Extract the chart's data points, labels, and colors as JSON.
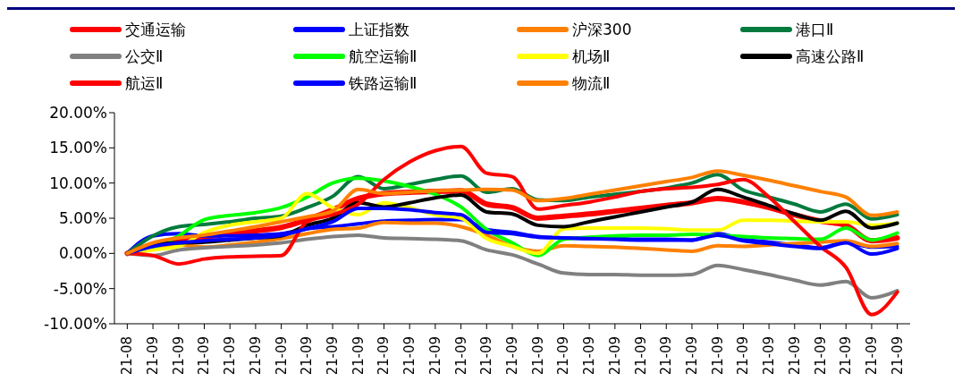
{
  "chart_data": {
    "type": "line",
    "categories": [
      "21-08",
      "21-09",
      "21-09",
      "21-09",
      "21-09",
      "21-09",
      "21-09",
      "21-09",
      "21-09",
      "21-09",
      "21-09",
      "21-09",
      "21-09",
      "21-09",
      "21-09",
      "21-09",
      "21-09",
      "21-09",
      "21-09",
      "21-09",
      "21-09",
      "21-09",
      "21-09",
      "21-09",
      "21-09",
      "21-09",
      "21-09",
      "21-09",
      "21-09",
      "21-09",
      "21-09"
    ],
    "series": [
      {
        "name": "交通运输",
        "color": "#ff0000",
        "values": [
          0,
          1.2,
          1.8,
          2.3,
          2.8,
          3.2,
          3.7,
          4.8,
          6.2,
          7.8,
          8.5,
          8.7,
          8.8,
          8.9,
          7.0,
          6.5,
          5.0,
          5.3,
          5.6,
          6.0,
          6.4,
          6.8,
          7.2,
          7.8,
          7.3,
          6.5,
          5.5,
          4.6,
          4.0,
          1.8,
          2.2
        ]
      },
      {
        "name": "上证指数",
        "color": "#0000ff",
        "values": [
          0,
          2.5,
          2.8,
          2.5,
          2.5,
          2.6,
          2.8,
          3.5,
          3.8,
          4.2,
          4.6,
          4.7,
          4.8,
          4.8,
          3.4,
          3.0,
          2.4,
          2.2,
          2.1,
          2.1,
          2.0,
          2.0,
          1.9,
          2.8,
          2.0,
          1.6,
          1.2,
          0.8,
          1.6,
          0.9,
          1.0
        ]
      },
      {
        "name": "沪深300",
        "color": "#ff8000",
        "values": [
          0,
          1.0,
          1.2,
          0.9,
          1.2,
          1.6,
          2.1,
          2.8,
          3.4,
          3.6,
          4.4,
          4.3,
          4.3,
          3.8,
          2.6,
          1.0,
          0.3,
          1.1,
          1.0,
          0.9,
          0.7,
          0.5,
          0.3,
          1.1,
          1.0,
          1.2,
          1.4,
          1.6,
          1.8,
          1.0,
          1.4
        ]
      },
      {
        "name": "港口Ⅱ",
        "color": "#007a3d",
        "values": [
          0,
          2.5,
          3.8,
          4.1,
          4.5,
          5.0,
          5.3,
          6.5,
          8.1,
          10.9,
          9.2,
          9.8,
          10.5,
          11.0,
          8.7,
          9.2,
          7.6,
          7.5,
          8.0,
          8.4,
          8.8,
          9.3,
          10.0,
          11.2,
          9.0,
          8.0,
          7.0,
          5.9,
          7.0,
          4.9,
          5.5
        ]
      },
      {
        "name": "公交Ⅱ",
        "color": "#808080",
        "values": [
          0,
          -0.3,
          0.5,
          0.8,
          1.0,
          1.2,
          1.5,
          2.0,
          2.4,
          2.6,
          2.2,
          2.1,
          2.0,
          1.8,
          0.5,
          -0.2,
          -1.5,
          -2.8,
          -3.0,
          -3.0,
          -3.1,
          -3.1,
          -3.0,
          -1.7,
          -2.3,
          -3.0,
          -3.8,
          -4.5,
          -4.0,
          -6.3,
          -5.3
        ]
      },
      {
        "name": "航空运输Ⅱ",
        "color": "#00ff00",
        "values": [
          0,
          0.8,
          2.5,
          4.8,
          5.4,
          5.8,
          6.5,
          8.0,
          10.0,
          10.7,
          10.3,
          9.5,
          8.4,
          6.6,
          3.4,
          1.5,
          -0.3,
          2.0,
          2.3,
          2.5,
          2.6,
          2.6,
          2.7,
          2.6,
          2.4,
          2.2,
          2.1,
          2.0,
          3.6,
          1.9,
          2.9
        ]
      },
      {
        "name": "机场Ⅱ",
        "color": "#ffff00",
        "values": [
          0,
          0.5,
          1.0,
          3.0,
          4.0,
          4.5,
          5.0,
          8.5,
          6.5,
          5.5,
          7.2,
          6.5,
          5.5,
          5.0,
          2.1,
          1.0,
          0,
          3.5,
          3.6,
          3.6,
          3.6,
          3.5,
          3.3,
          3.3,
          4.7,
          4.7,
          4.6,
          4.5,
          4.5,
          4.0,
          4.3
        ]
      },
      {
        "name": "高速公路Ⅱ",
        "color": "#000000",
        "values": [
          0,
          1.3,
          1.5,
          1.6,
          1.9,
          2.2,
          2.5,
          4.0,
          5.0,
          7.2,
          6.6,
          7.2,
          7.9,
          8.3,
          5.9,
          5.6,
          4.0,
          3.8,
          4.5,
          5.2,
          5.9,
          6.6,
          7.3,
          9.1,
          8.0,
          6.8,
          5.6,
          4.7,
          6.0,
          3.6,
          4.3
        ]
      },
      {
        "name": "航运Ⅱ",
        "color": "#ff0000",
        "values": [
          0,
          -0.3,
          -1.5,
          -0.8,
          -0.5,
          -0.4,
          -0.3,
          4.5,
          5.5,
          7.0,
          10.5,
          13.0,
          14.6,
          15.2,
          11.4,
          10.9,
          6.3,
          6.8,
          7.3,
          8.0,
          8.8,
          9.2,
          9.4,
          9.8,
          10.5,
          8.0,
          4.5,
          1.0,
          -2.0,
          -8.7,
          -5.5
        ]
      },
      {
        "name": "铁路运输Ⅱ",
        "color": "#0000ff",
        "values": [
          0,
          1.0,
          1.5,
          1.8,
          2.0,
          2.2,
          2.6,
          3.5,
          4.5,
          6.4,
          6.4,
          6.2,
          5.8,
          5.5,
          3.0,
          2.8,
          2.3,
          2.2,
          2.1,
          2.0,
          1.9,
          1.9,
          1.9,
          2.6,
          1.8,
          1.4,
          1.0,
          0.7,
          1.5,
          -0.1,
          0.7
        ]
      },
      {
        "name": "物流Ⅱ",
        "color": "#ff8000",
        "values": [
          0,
          1.5,
          2.2,
          2.6,
          3.2,
          3.8,
          4.5,
          5.2,
          6.0,
          9.1,
          8.5,
          8.7,
          8.9,
          9.0,
          9.1,
          9.0,
          7.5,
          7.8,
          8.4,
          9.0,
          9.6,
          10.2,
          10.8,
          11.7,
          11.1,
          10.4,
          9.6,
          8.8,
          8.0,
          5.4,
          5.9
        ]
      }
    ],
    "ylim": [
      -10,
      20
    ],
    "yticks": [
      {
        "value": -10,
        "label": "-10.00%"
      },
      {
        "value": -5,
        "label": "-5.00%"
      },
      {
        "value": 0,
        "label": "0.00%"
      },
      {
        "value": 5,
        "label": "5.00%"
      },
      {
        "value": 10,
        "label": "10.00%"
      },
      {
        "value": 15,
        "label": "15.00%"
      },
      {
        "value": 20,
        "label": "20.00%"
      }
    ],
    "legend": "top",
    "grid": false
  }
}
